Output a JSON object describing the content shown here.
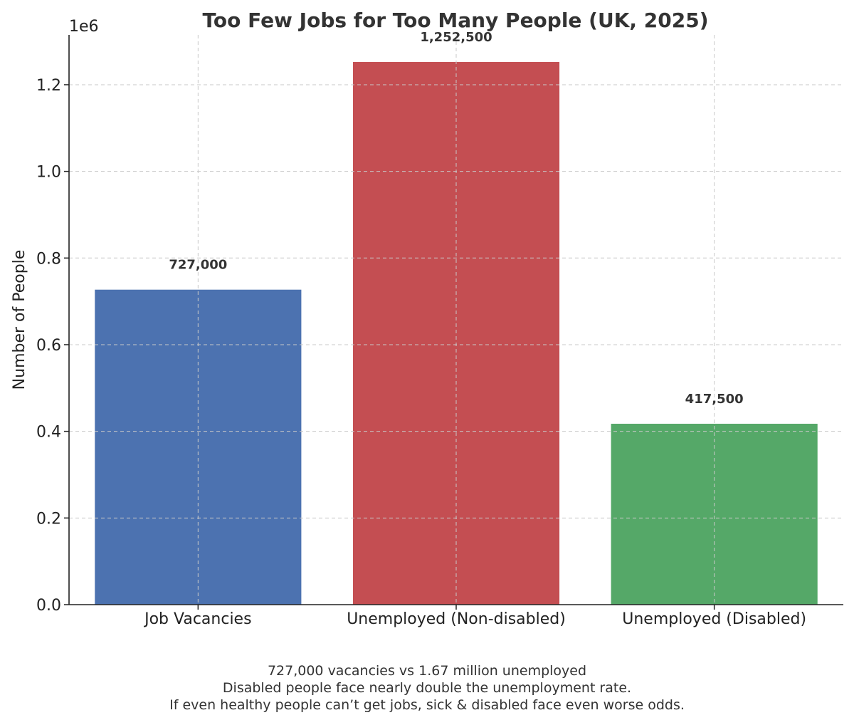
{
  "chart_data": {
    "type": "bar",
    "title": "Too Few Jobs for Too Many People (UK, 2025)",
    "xlabel": "",
    "ylabel": "Number of People",
    "y_offset_text": "1e6",
    "ylim": [
      0,
      1315000
    ],
    "yticks": [
      0,
      200000,
      400000,
      600000,
      800000,
      1000000,
      1200000
    ],
    "ytick_labels": [
      "0.0",
      "0.2",
      "0.4",
      "0.6",
      "0.8",
      "1.0",
      "1.2"
    ],
    "categories": [
      "Job Vacancies",
      "Unemployed (Non-disabled)",
      "Unemployed (Disabled)"
    ],
    "values": [
      727000,
      1252500,
      417500
    ],
    "value_labels": [
      "727,000",
      "1,252,500",
      "417,500"
    ],
    "colors": [
      "#4c72b0",
      "#c44e52",
      "#55a868"
    ],
    "grid": true
  },
  "caption": {
    "line1": "727,000 vacancies vs 1.67 million unemployed",
    "line2": "Disabled people face nearly double the unemployment rate.",
    "line3": "If even healthy people can’t get jobs, sick & disabled face even worse odds."
  }
}
